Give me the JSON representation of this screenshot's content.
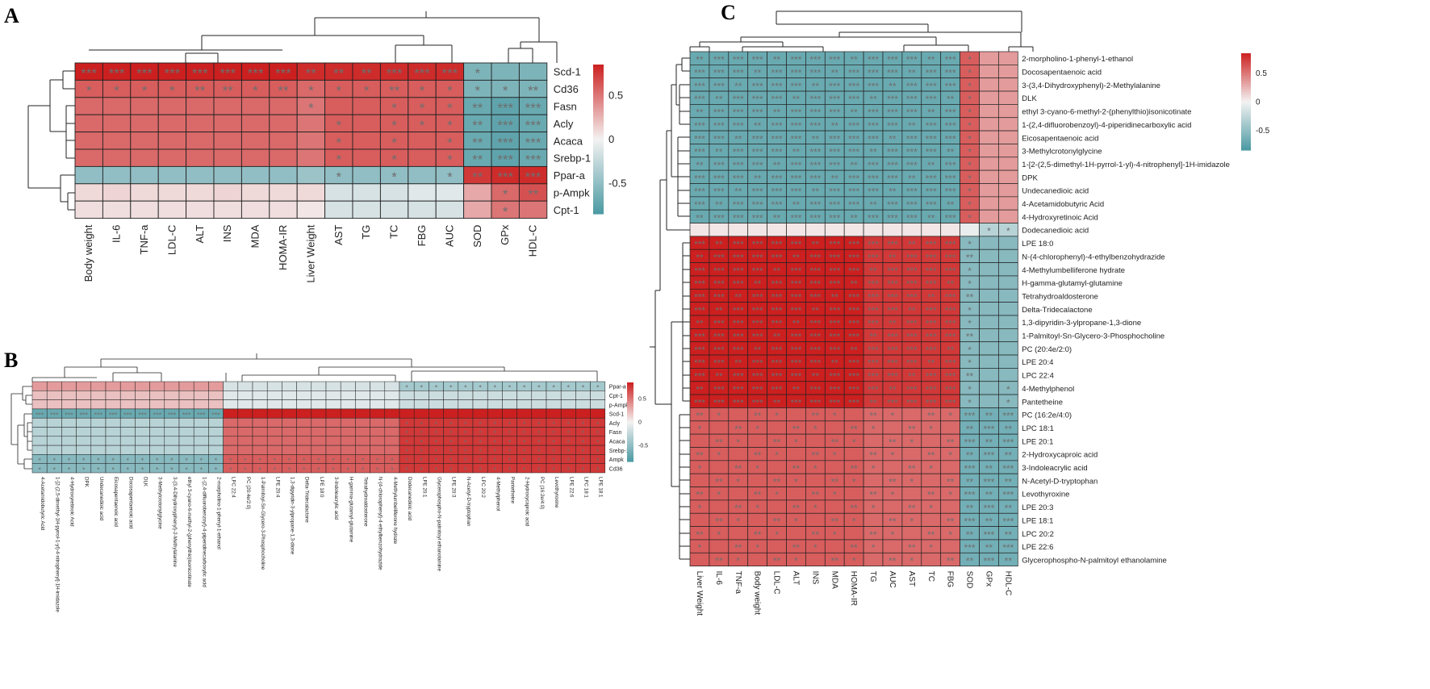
{
  "palette": {
    "red": "#cc1f1f",
    "white": "#f4f2f2",
    "teal": "#4b9aa3",
    "star": "#6e6e6e",
    "line": "#222222"
  },
  "chart_data": [
    {
      "type": "heatmap",
      "panel_label": "A",
      "columns": [
        "Body weight",
        "IL-6",
        "TNF-a",
        "LDL-C",
        "ALT",
        "INS",
        "MDA",
        "HOMA-IR",
        "Liver Weight",
        "AST",
        "TG",
        "TC",
        "FBG",
        "AUC",
        "SOD",
        "GPx",
        "HDL-C"
      ],
      "rows": [
        "Scd-1",
        "Cd36",
        "Fasn",
        "Acly",
        "Acaca",
        "Srebp-1",
        "Ppar-a",
        "p-Ampk",
        "Cpt-1"
      ],
      "values": [
        [
          0.85,
          0.85,
          0.85,
          0.85,
          0.85,
          0.85,
          0.85,
          0.85,
          0.8,
          0.8,
          0.8,
          0.8,
          0.8,
          0.8,
          -0.6,
          -0.6,
          -0.6
        ],
        [
          0.6,
          0.6,
          0.6,
          0.6,
          0.6,
          0.6,
          0.6,
          0.6,
          0.55,
          0.6,
          0.6,
          0.6,
          0.6,
          0.6,
          -0.6,
          -0.6,
          -0.6
        ],
        [
          0.55,
          0.55,
          0.55,
          0.55,
          0.55,
          0.55,
          0.55,
          0.55,
          0.5,
          0.6,
          0.6,
          0.6,
          0.6,
          0.6,
          -0.7,
          -0.75,
          -0.7
        ],
        [
          0.55,
          0.55,
          0.55,
          0.55,
          0.55,
          0.55,
          0.55,
          0.55,
          0.5,
          0.6,
          0.6,
          0.6,
          0.6,
          0.6,
          -0.7,
          -0.75,
          -0.7
        ],
        [
          0.55,
          0.55,
          0.55,
          0.55,
          0.55,
          0.55,
          0.55,
          0.55,
          0.5,
          0.6,
          0.6,
          0.6,
          0.6,
          0.6,
          -0.7,
          -0.75,
          -0.7
        ],
        [
          0.55,
          0.55,
          0.55,
          0.55,
          0.55,
          0.55,
          0.55,
          0.55,
          0.5,
          0.6,
          0.6,
          0.6,
          0.6,
          0.6,
          -0.7,
          -0.75,
          -0.7
        ],
        [
          -0.5,
          -0.5,
          -0.5,
          -0.5,
          -0.5,
          -0.5,
          -0.5,
          -0.5,
          -0.45,
          -0.5,
          -0.5,
          -0.5,
          -0.5,
          -0.5,
          0.75,
          0.8,
          0.8
        ],
        [
          0.1,
          0.12,
          0.1,
          0.1,
          0.1,
          0.12,
          0.1,
          0.1,
          0.1,
          -0.15,
          -0.15,
          -0.15,
          -0.1,
          -0.1,
          0.3,
          0.55,
          0.65
        ],
        [
          0.08,
          0.08,
          0.08,
          0.08,
          0.08,
          0.08,
          0.08,
          0.08,
          0.05,
          -0.15,
          -0.15,
          -0.15,
          -0.15,
          -0.15,
          0.3,
          0.5,
          0.5
        ]
      ],
      "stars": [
        [
          "***",
          "***",
          "***",
          "***",
          "***",
          "***",
          "***",
          "***",
          "**",
          "**",
          "**",
          "***",
          "***",
          "***",
          "*",
          "",
          ""
        ],
        [
          "*",
          "*",
          "*",
          "*",
          "**",
          "**",
          "*",
          "**",
          "*",
          "*",
          "*",
          "**",
          "*",
          "*",
          "*",
          "*",
          "**"
        ],
        [
          "",
          "",
          "",
          "",
          "",
          "",
          "",
          "",
          "*",
          "",
          "",
          "*",
          "*",
          "*",
          "**",
          "***",
          "***"
        ],
        [
          "",
          "",
          "",
          "",
          "",
          "",
          "",
          "",
          "",
          "*",
          "",
          "*",
          "*",
          "*",
          "**",
          "***",
          "***"
        ],
        [
          "",
          "",
          "",
          "",
          "",
          "",
          "",
          "",
          "",
          "*",
          "",
          "*",
          "",
          "*",
          "**",
          "***",
          "***"
        ],
        [
          "",
          "",
          "",
          "",
          "",
          "",
          "",
          "",
          "",
          "*",
          "",
          "*",
          "",
          "*",
          "**",
          "***",
          "***"
        ],
        [
          "",
          "",
          "",
          "",
          "",
          "",
          "",
          "",
          "",
          "*",
          "",
          "*",
          "",
          "*",
          "**",
          "***",
          "***"
        ],
        [
          "",
          "",
          "",
          "",
          "",
          "",
          "",
          "",
          "",
          "",
          "",
          "",
          "",
          "",
          "",
          "*",
          "**"
        ],
        [
          "",
          "",
          "",
          "",
          "",
          "",
          "",
          "",
          "",
          "",
          "",
          "",
          "",
          "",
          "",
          "*",
          ""
        ]
      ],
      "colorbar": {
        "ticks": [
          0.5,
          0,
          -0.5
        ],
        "range": [
          -0.85,
          0.85
        ]
      }
    },
    {
      "type": "heatmap",
      "panel_label": "B",
      "columns": [
        "4-Acetamidobutyric Acid",
        "1-[2-(2,5-dimethyl-1H-pyrrol-1-yl)-4-nitrophenyl]-1H-imidazole",
        "4-Hydroxyretinoic Acid",
        "DPK",
        "Undecanedioic acid",
        "Eicosapentaenoic acid",
        "Docosapentaenoic acid",
        "DLK",
        "3-Methylcrotonylglycine",
        "3-(3,4-Dihydroxyphenyl)-2-Methylalanine",
        "ethyl 3-cyano-6-methyl-2-(phenylthio)isonicotinate",
        "1-(2,4-difluorobenzoyl)-4-piperidinecarboxylic acid",
        "2-morpholino-1-phenyl-1-ethanol",
        "LPC 22:4",
        "PC (20:4e/2:0)",
        "1-Palmitoyl-Sn-Glycero-3-Phosphocholine",
        "LPE 20:4",
        "1,3-dipyridin-3-ylpropane-1,3-dione",
        "Delta-Tridecalactone",
        "LPE 18:0",
        "3-Indoleacrylic acid",
        "H-gamma-glutamyl-glutamine",
        "Tetrahydroaldosterone",
        "N-(4-chlorophenyl)-4-ethylbenzohydrazide",
        "4-Methylumbelliferone hydrate",
        "Dodecanedioic acid",
        "LPE 20:1",
        "Glycerophospho-N-palmitoyl ethanolamine",
        "LPE 20:3",
        "N-Acetyl-D-tryptophan",
        "LPC 20:2",
        "4-Methylphenol",
        "Pantetheine",
        "2-Hydroxycaproic acid",
        "PC (16:2e/4:0)",
        "Levothyroxine",
        "LPE 22:6",
        "LPC 18:1",
        "LPE 18:1"
      ],
      "rows": [
        "Ppar-a",
        "Cpt-1",
        "p-Ampk",
        "Scd-1",
        "Acly",
        "Fasn",
        "Acaca",
        "Srebp-1c",
        "Ampk",
        "Cd36"
      ]
    },
    {
      "type": "heatmap",
      "panel_label": "C",
      "columns": [
        "Liver Weight",
        "IL-6",
        "TNF-a",
        "Body weight",
        "LDL-C",
        "ALT",
        "INS",
        "MDA",
        "HOMA-IR",
        "TG",
        "AUC",
        "AST",
        "TC",
        "FBG",
        "SOD",
        "GPx",
        "HDL-C"
      ],
      "rows": [
        "2-morpholino-1-phenyl-1-ethanol",
        "Docosapentaenoic acid",
        "3-(3,4-Dihydroxyphenyl)-2-Methylalanine",
        "DLK",
        "ethyl 3-cyano-6-methyl-2-(phenylthio)isonicotinate",
        "1-(2,4-difluorobenzoyl)-4-piperidinecarboxylic acid",
        "Eicosapentaenoic acid",
        "3-Methylcrotonylglycine",
        " 1-[2-(2,5-dimethyl-1H-pyrrol-1-yl)-4-nitrophenyl]-1H-imidazole",
        "DPK",
        "Undecanedioic acid",
        "4-Acetamidobutyric Acid",
        "4-Hydroxyretinoic Acid",
        "Dodecanedioic acid",
        "LPE 18:0",
        "N-(4-chlorophenyl)-4-ethylbenzohydrazide",
        "4-Methylumbelliferone hydrate",
        "H-gamma-glutamyl-glutamine",
        "Tetrahydroaldosterone",
        "Delta-Tridecalactone",
        "1,3-dipyridin-3-ylpropane-1,3-dione",
        "1-Palmitoyl-Sn-Glycero-3-Phosphocholine",
        "PC (20:4e/2:0)",
        "LPE 20:4",
        "LPC 22:4",
        "4-Methylphenol",
        "Pantetheine",
        "PC (16:2e/4:0)",
        "LPC 18:1",
        "LPE 20:1",
        "2-Hydroxycaproic acid",
        "3-Indoleacrylic acid",
        "N-Acetyl-D-tryptophan",
        "Levothyroxine",
        "LPE 20:3",
        "LPE 18:1",
        "LPC 20:2",
        "LPE 22:6",
        "Glycerophospho-N-palmitoyl ethanolamine"
      ],
      "colorbar": {
        "ticks": [
          0.5,
          0,
          -0.5
        ],
        "range": [
          -0.85,
          0.85
        ]
      }
    }
  ]
}
